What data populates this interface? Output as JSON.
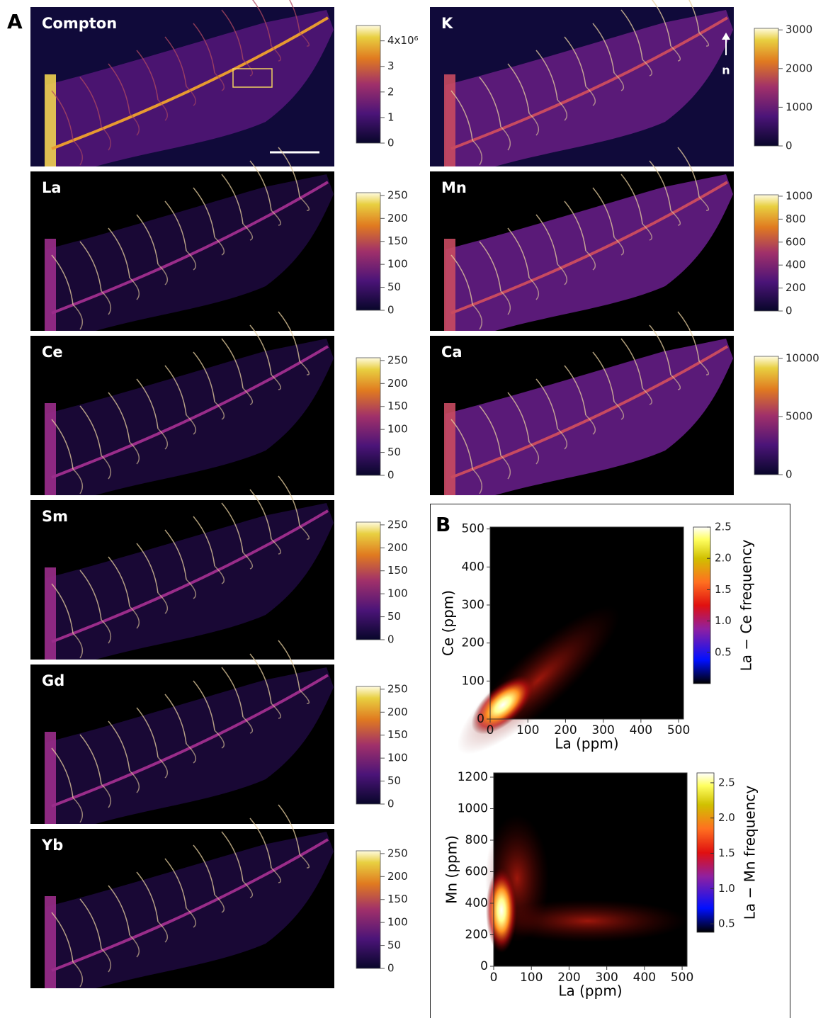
{
  "panel_a": {
    "label": "A",
    "north_label": "n",
    "maps": [
      {
        "title": "Compton",
        "colorbar": {
          "lim": [
            0,
            4.6
          ],
          "ticks": [
            0,
            1,
            2,
            3,
            {
              "value": 4,
              "label": "4x10⁶"
            }
          ]
        }
      },
      {
        "title": "La",
        "colorbar": {
          "lim": [
            0,
            256
          ],
          "ticks": [
            0,
            50,
            100,
            150,
            200,
            250
          ]
        }
      },
      {
        "title": "Ce",
        "colorbar": {
          "lim": [
            0,
            256
          ],
          "ticks": [
            0,
            50,
            100,
            150,
            200,
            250
          ]
        }
      },
      {
        "title": "Sm",
        "colorbar": {
          "lim": [
            0,
            256
          ],
          "ticks": [
            0,
            50,
            100,
            150,
            200,
            250
          ]
        }
      },
      {
        "title": "Gd",
        "colorbar": {
          "lim": [
            0,
            256
          ],
          "ticks": [
            0,
            50,
            100,
            150,
            200,
            250
          ]
        }
      },
      {
        "title": "Yb",
        "colorbar": {
          "lim": [
            0,
            256
          ],
          "ticks": [
            0,
            50,
            100,
            150,
            200,
            250
          ]
        }
      },
      {
        "title": "K",
        "colorbar": {
          "lim": [
            0,
            3040
          ],
          "ticks": [
            0,
            1000,
            2000,
            3000
          ]
        }
      },
      {
        "title": "Mn",
        "colorbar": {
          "lim": [
            0,
            1012
          ],
          "ticks": [
            0,
            200,
            400,
            600,
            800,
            1000
          ]
        }
      },
      {
        "title": "Ca",
        "colorbar": {
          "lim": [
            0,
            10180
          ],
          "ticks": [
            0,
            5000,
            10000
          ]
        }
      }
    ]
  },
  "panel_b": {
    "label": "B",
    "plots": [
      {
        "xlabel": "La (ppm)",
        "ylabel": "Ce (ppm)",
        "xlim": [
          0,
          513
        ],
        "xticks": [
          0,
          100,
          200,
          300,
          400,
          500
        ],
        "ylim": [
          0,
          505
        ],
        "yticks": [
          0,
          100,
          200,
          300,
          400,
          500
        ],
        "colorbar": {
          "label": "La − Ce frequency",
          "lim": [
            0,
            2.5
          ],
          "ticks": [
            0.5,
            {
              "value": 1,
              "label": "1.0"
            },
            1.5,
            {
              "value": 2,
              "label": "2.0"
            },
            2.5
          ]
        }
      },
      {
        "xlabel": "La (ppm)",
        "ylabel": "Mn (ppm)",
        "xlim": [
          0,
          513
        ],
        "xticks": [
          0,
          100,
          200,
          300,
          400,
          500
        ],
        "ylim": [
          0,
          1227
        ],
        "yticks": [
          0,
          200,
          400,
          600,
          800,
          1000,
          1200
        ],
        "colorbar": {
          "label": "La − Mn frequency",
          "lim": [
            0.38,
            2.64
          ],
          "ticks": [
            0.5,
            {
              "value": 1,
              "label": "1.0"
            },
            1.5,
            {
              "value": 2,
              "label": "2.0"
            },
            2.5
          ]
        }
      }
    ]
  }
}
